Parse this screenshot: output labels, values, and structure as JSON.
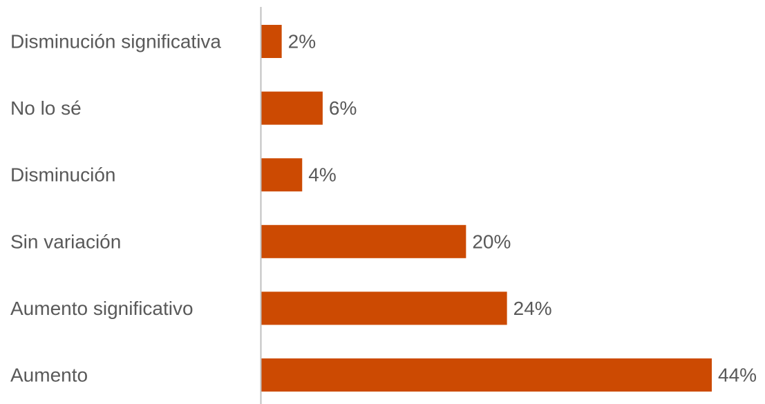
{
  "chart_data": {
    "type": "bar",
    "orientation": "horizontal",
    "categories": [
      "Disminución significativa",
      "No lo sé",
      "Disminución",
      "Sin variación",
      "Aumento significativo",
      "Aumento"
    ],
    "values": [
      2,
      6,
      4,
      20,
      24,
      44
    ],
    "value_labels": [
      "2%",
      "6%",
      "4%",
      "20%",
      "24%",
      "44%"
    ],
    "unit": "%",
    "xlim": [
      0,
      44
    ],
    "title": "",
    "xlabel": "",
    "ylabel": "",
    "grid": false,
    "legend": "none",
    "colors": {
      "bar": "#cc4a02",
      "axis": "#bfbfbf",
      "text": "#595959"
    }
  }
}
